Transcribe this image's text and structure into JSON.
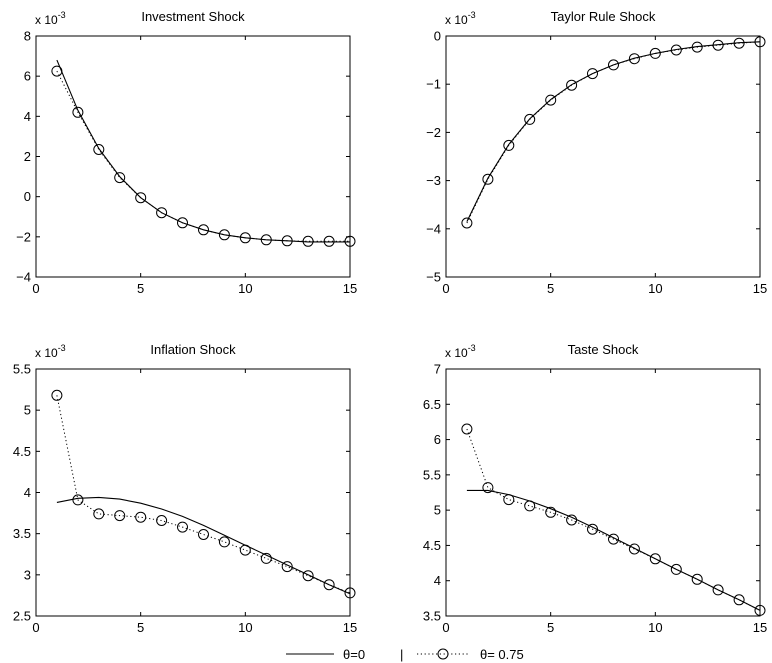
{
  "chart_data": [
    {
      "type": "line",
      "title": "Investment Shock",
      "exponent_label": "x 10",
      "exponent_power": "-3",
      "xlim": [
        0,
        15
      ],
      "ylim": [
        -4,
        8
      ],
      "x_ticks": [
        0,
        5,
        10,
        15
      ],
      "y_ticks": [
        -4,
        -2,
        0,
        2,
        4,
        6,
        8
      ],
      "x": [
        1,
        2,
        3,
        4,
        5,
        6,
        7,
        8,
        9,
        10,
        11,
        12,
        13,
        14,
        15
      ],
      "series": [
        {
          "name": "θ=0",
          "style": "solid",
          "values": [
            6.8,
            4.3,
            2.4,
            1.0,
            -0.05,
            -0.8,
            -1.3,
            -1.65,
            -1.9,
            -2.05,
            -2.15,
            -2.2,
            -2.25,
            -2.25,
            -2.25
          ]
        },
        {
          "name": "θ= 0.75",
          "style": "dotted-circle",
          "values": [
            6.25,
            4.2,
            2.35,
            0.95,
            -0.05,
            -0.8,
            -1.3,
            -1.65,
            -1.9,
            -2.05,
            -2.15,
            -2.2,
            -2.22,
            -2.22,
            -2.22
          ]
        }
      ]
    },
    {
      "type": "line",
      "title": "Taylor Rule Shock",
      "exponent_label": "x 10",
      "exponent_power": "-3",
      "xlim": [
        0,
        15
      ],
      "ylim": [
        -5,
        0
      ],
      "x_ticks": [
        0,
        5,
        10,
        15
      ],
      "y_ticks": [
        -5,
        -4,
        -3,
        -2,
        -1,
        0
      ],
      "x": [
        1,
        2,
        3,
        4,
        5,
        6,
        7,
        8,
        9,
        10,
        11,
        12,
        13,
        14,
        15
      ],
      "series": [
        {
          "name": "θ=0",
          "style": "solid",
          "values": [
            -3.85,
            -2.95,
            -2.25,
            -1.72,
            -1.32,
            -1.01,
            -0.78,
            -0.6,
            -0.46,
            -0.36,
            -0.28,
            -0.22,
            -0.18,
            -0.14,
            -0.12
          ]
        },
        {
          "name": "θ= 0.75",
          "style": "dotted-circle",
          "values": [
            -3.88,
            -2.97,
            -2.27,
            -1.73,
            -1.33,
            -1.02,
            -0.78,
            -0.6,
            -0.47,
            -0.36,
            -0.29,
            -0.23,
            -0.19,
            -0.15,
            -0.12
          ]
        }
      ]
    },
    {
      "type": "line",
      "title": "Inflation Shock",
      "exponent_label": "x 10",
      "exponent_power": "-3",
      "xlim": [
        0,
        15
      ],
      "ylim": [
        2.5,
        5.5
      ],
      "x_ticks": [
        0,
        5,
        10,
        15
      ],
      "y_ticks": [
        2.5,
        3,
        3.5,
        4,
        4.5,
        5,
        5.5
      ],
      "x": [
        1,
        2,
        3,
        4,
        5,
        6,
        7,
        8,
        9,
        10,
        11,
        12,
        13,
        14,
        15
      ],
      "series": [
        {
          "name": "θ=0",
          "style": "solid",
          "values": [
            3.88,
            3.93,
            3.94,
            3.92,
            3.87,
            3.8,
            3.71,
            3.6,
            3.48,
            3.36,
            3.24,
            3.12,
            3.0,
            2.88,
            2.77
          ]
        },
        {
          "name": "θ= 0.75",
          "style": "dotted-circle",
          "values": [
            5.18,
            3.91,
            3.74,
            3.72,
            3.7,
            3.66,
            3.58,
            3.49,
            3.4,
            3.3,
            3.2,
            3.1,
            2.99,
            2.88,
            2.78
          ]
        }
      ]
    },
    {
      "type": "line",
      "title": "Taste Shock",
      "exponent_label": "x 10",
      "exponent_power": "-3",
      "xlim": [
        0,
        15
      ],
      "ylim": [
        3.5,
        7
      ],
      "x_ticks": [
        0,
        5,
        10,
        15
      ],
      "y_ticks": [
        3.5,
        4,
        4.5,
        5,
        5.5,
        6,
        6.5,
        7
      ],
      "x": [
        1,
        2,
        3,
        4,
        5,
        6,
        7,
        8,
        9,
        10,
        11,
        12,
        13,
        14,
        15
      ],
      "series": [
        {
          "name": "θ=0",
          "style": "solid",
          "values": [
            5.28,
            5.28,
            5.22,
            5.13,
            5.02,
            4.9,
            4.76,
            4.61,
            4.46,
            4.31,
            4.16,
            4.02,
            3.87,
            3.73,
            3.58
          ]
        },
        {
          "name": "θ= 0.75",
          "style": "dotted-circle",
          "values": [
            6.15,
            5.32,
            5.15,
            5.06,
            4.97,
            4.86,
            4.73,
            4.59,
            4.45,
            4.31,
            4.16,
            4.02,
            3.87,
            3.73,
            3.58
          ]
        }
      ]
    }
  ],
  "legend": {
    "position": "bottom-center",
    "separator": "|",
    "entries": [
      {
        "label": "θ=0",
        "style": "solid"
      },
      {
        "label": "θ= 0.75",
        "style": "dotted-circle"
      }
    ]
  }
}
